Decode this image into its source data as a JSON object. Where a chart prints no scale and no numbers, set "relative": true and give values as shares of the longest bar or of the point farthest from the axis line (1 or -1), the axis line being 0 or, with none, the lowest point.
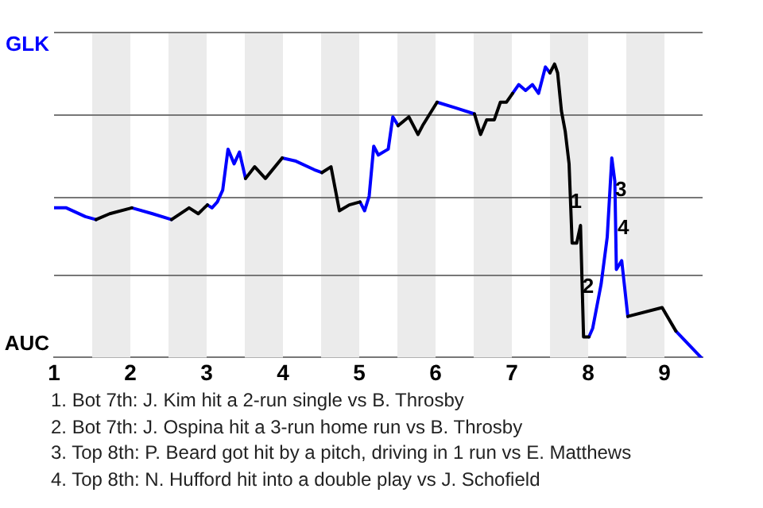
{
  "chart_data": {
    "type": "line",
    "relative": true,
    "x": [
      1,
      1.16,
      1.41,
      1.55,
      1.73,
      2.02,
      2.29,
      2.54,
      2.77,
      2.89,
      3.01,
      3.07,
      3.14,
      3.21,
      3.28,
      3.36,
      3.43,
      3.51,
      3.63,
      3.77,
      3.99,
      4.16,
      4.41,
      4.51,
      4.63,
      4.74,
      4.87,
      5.01,
      5.07,
      5.13,
      5.19,
      5.25,
      5.38,
      5.44,
      5.51,
      5.65,
      5.77,
      5.83,
      6.02,
      6.27,
      6.51,
      6.59,
      6.67,
      6.77,
      6.85,
      6.93,
      7.01,
      7.09,
      7.18,
      7.27,
      7.35,
      7.44,
      7.5,
      7.56,
      7.6,
      7.65,
      7.7,
      7.75,
      7.79,
      7.85,
      7.9,
      7.94,
      8.01,
      8.06,
      8.17,
      8.25,
      8.31,
      8.35,
      8.37,
      8.44,
      8.52,
      8.97,
      9.15,
      9.48
    ],
    "series": [
      {
        "color": "#0000ff",
        "values": [
          0.51,
          0.51,
          0.48,
          0.47,
          null,
          0.51,
          0.49,
          0.47,
          null,
          null,
          0.52,
          0.51,
          0.53,
          0.57,
          0.71,
          0.66,
          0.7,
          0.61,
          null,
          null,
          0.68,
          0.67,
          0.64,
          0.63,
          null,
          null,
          null,
          0.53,
          0.5,
          0.55,
          0.72,
          0.69,
          0.71,
          0.82,
          0.79,
          null,
          null,
          null,
          0.87,
          0.85,
          0.83,
          null,
          null,
          null,
          null,
          null,
          0.9,
          0.93,
          0.91,
          0.93,
          0.9,
          0.99,
          0.97,
          null,
          null,
          null,
          null,
          null,
          null,
          null,
          null,
          null,
          0.07,
          0.1,
          0.25,
          0.41,
          0.68,
          0.6,
          0.3,
          0.33,
          0.14,
          null,
          0.09,
          0
        ]
      },
      {
        "color": "#000000",
        "values": [
          null,
          null,
          null,
          0.47,
          0.49,
          0.51,
          null,
          0.47,
          0.51,
          0.49,
          0.52,
          null,
          null,
          null,
          null,
          null,
          null,
          0.61,
          0.65,
          0.61,
          0.68,
          null,
          null,
          0.63,
          0.65,
          0.5,
          0.52,
          0.53,
          null,
          null,
          null,
          null,
          null,
          null,
          0.79,
          0.82,
          0.76,
          0.79,
          0.87,
          null,
          0.83,
          0.76,
          0.81,
          0.81,
          0.87,
          0.87,
          0.9,
          null,
          null,
          null,
          null,
          null,
          0.97,
          1,
          0.97,
          0.84,
          0.77,
          0.66,
          0.39,
          0.39,
          0.45,
          0.07,
          0.07,
          null,
          null,
          null,
          null,
          null,
          null,
          null,
          0.14,
          0.17,
          0.09,
          null
        ]
      }
    ],
    "xlim": [
      1,
      9.5
    ],
    "xticks": [
      1,
      2,
      3,
      4,
      5,
      6,
      7,
      8,
      9
    ],
    "legend": false,
    "marker": "none",
    "line_style": "solid",
    "ref_lines": [
      {
        "axis": "y",
        "value": 0.28,
        "color": "#777777"
      },
      {
        "axis": "y",
        "value": 0.55,
        "color": "#777777"
      },
      {
        "axis": "y",
        "value": 0.83,
        "color": "#777777"
      },
      {
        "axis": "y",
        "value": 1.11,
        "color": "#777777"
      }
    ],
    "bands": [
      {
        "axis": "x",
        "from": 1.5,
        "to": 2,
        "color": "#ebebeb"
      },
      {
        "axis": "x",
        "from": 2.5,
        "to": 3,
        "color": "#ebebeb"
      },
      {
        "axis": "x",
        "from": 3.5,
        "to": 4,
        "color": "#ebebeb"
      },
      {
        "axis": "x",
        "from": 4.5,
        "to": 5,
        "color": "#ebebeb"
      },
      {
        "axis": "x",
        "from": 5.5,
        "to": 6,
        "color": "#ebebeb"
      },
      {
        "axis": "x",
        "from": 6.5,
        "to": 7,
        "color": "#ebebeb"
      },
      {
        "axis": "x",
        "from": 7.5,
        "to": 8,
        "color": "#ebebeb"
      },
      {
        "axis": "x",
        "from": 8.5,
        "to": 9,
        "color": "#ebebeb"
      }
    ],
    "annotations": [
      "GLK",
      "AUC",
      {
        "text": "1",
        "x": 7.84,
        "y": 0.53
      },
      {
        "text": "2",
        "x": 8.0,
        "y": 0.24
      },
      {
        "text": "3",
        "x": 8.43,
        "y": 0.57
      },
      {
        "text": "4",
        "x": 8.46,
        "y": 0.44
      },
      "1. Bot 7th: J. Kim hit a 2-run single vs B. Throsby",
      "2. Bot 7th: J. Ospina hit a 3-run home run vs B. Throsby",
      "3. Top 8th: P. Beard got hit by a pitch, driving in 1 run vs E. Matthews",
      "4. Top 8th: N. Hufford hit into a double play vs J. Schofield"
    ]
  }
}
